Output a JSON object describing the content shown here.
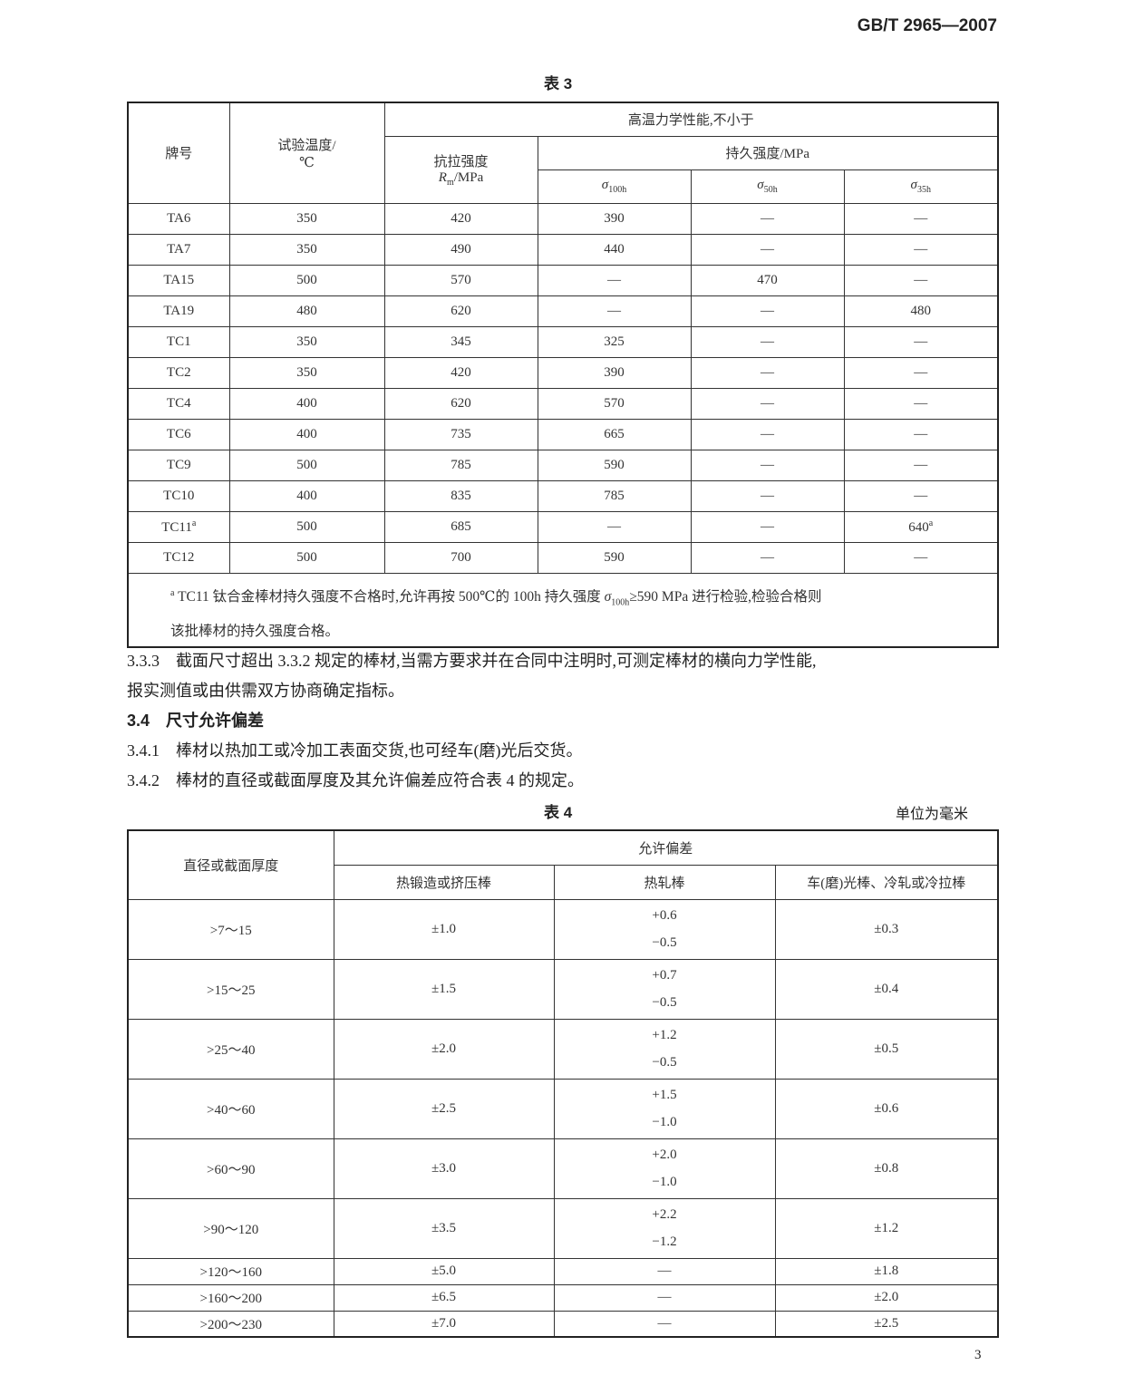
{
  "header": {
    "standard": "GB/T 2965—2007"
  },
  "table3": {
    "caption": "表 3",
    "h_grade": "牌号",
    "h_temp": "试验温度/",
    "h_temp_unit": "℃",
    "h_group": "高温力学性能,不小于",
    "h_tensile": "抗拉强度",
    "h_tensile_sym": "R",
    "h_tensile_sub": "m",
    "h_tensile_unit": "/MPa",
    "h_creep": "持久强度/MPa",
    "h_s100": "100h",
    "h_s50": "50h",
    "h_s35": "35h",
    "sigma": "σ",
    "rows": [
      [
        "TA6",
        "350",
        "420",
        "390",
        "—",
        "—"
      ],
      [
        "TA7",
        "350",
        "490",
        "440",
        "—",
        "—"
      ],
      [
        "TA15",
        "500",
        "570",
        "—",
        "470",
        "—"
      ],
      [
        "TA19",
        "480",
        "620",
        "—",
        "—",
        "480"
      ],
      [
        "TC1",
        "350",
        "345",
        "325",
        "—",
        "—"
      ],
      [
        "TC2",
        "350",
        "420",
        "390",
        "—",
        "—"
      ],
      [
        "TC4",
        "400",
        "620",
        "570",
        "—",
        "—"
      ],
      [
        "TC6",
        "400",
        "735",
        "665",
        "—",
        "—"
      ],
      [
        "TC9",
        "500",
        "785",
        "590",
        "—",
        "—"
      ],
      [
        "TC10",
        "400",
        "835",
        "785",
        "—",
        "—"
      ],
      [
        "TC11",
        "500",
        "685",
        "—",
        "—",
        "640"
      ],
      [
        "TC12",
        "500",
        "700",
        "590",
        "—",
        "—"
      ]
    ],
    "note_mark": "a",
    "footnote_a": "TC11 钛合金棒材持久强度不合格时,允许再按 500℃的 100h 持久强度 ",
    "footnote_b": "≥590 MPa 进行检验,检验合格则",
    "footnote_c": "该批棒材的持久强度合格。"
  },
  "text": {
    "p333": "3.3.3　截面尺寸超出 3.3.2 规定的棒材,当需方要求并在合同中注明时,可测定棒材的横向力学性能,",
    "p333b": "报实测值或由供需双方协商确定指标。",
    "h34": "3.4　尺寸允许偏差",
    "p341": "3.4.1　棒材以热加工或冷加工表面交货,也可经车(磨)光后交货。",
    "p342": "3.4.2　棒材的直径或截面厚度及其允许偏差应符合表 4 的规定。"
  },
  "table4": {
    "caption": "表 4",
    "unit": "单位为毫米",
    "h_dim": "直径或截面厚度",
    "h_group": "允许偏差",
    "h_forged": "热锻造或挤压棒",
    "h_hot": "热轧棒",
    "h_turned": "车(磨)光棒、冷轧或冷拉棒",
    "rows": [
      [
        ">7～15",
        "±1.0",
        "+0.6",
        "−0.5",
        "±0.3"
      ],
      [
        ">15～25",
        "±1.5",
        "+0.7",
        "−0.5",
        "±0.4"
      ],
      [
        ">25～40",
        "±2.0",
        "+1.2",
        "−0.5",
        "±0.5"
      ],
      [
        ">40～60",
        "±2.5",
        "+1.5",
        "−1.0",
        "±0.6"
      ],
      [
        ">60～90",
        "±3.0",
        "+2.0",
        "−1.0",
        "±0.8"
      ],
      [
        ">90～120",
        "±3.5",
        "+2.2",
        "−1.2",
        "±1.2"
      ],
      [
        ">120～160",
        "±5.0",
        "—",
        "",
        "±1.8"
      ],
      [
        ">160～200",
        "±6.5",
        "—",
        "",
        "±2.0"
      ],
      [
        ">200～230",
        "±7.0",
        "—",
        "",
        "±2.5"
      ]
    ]
  },
  "footer": {
    "page": "3"
  }
}
